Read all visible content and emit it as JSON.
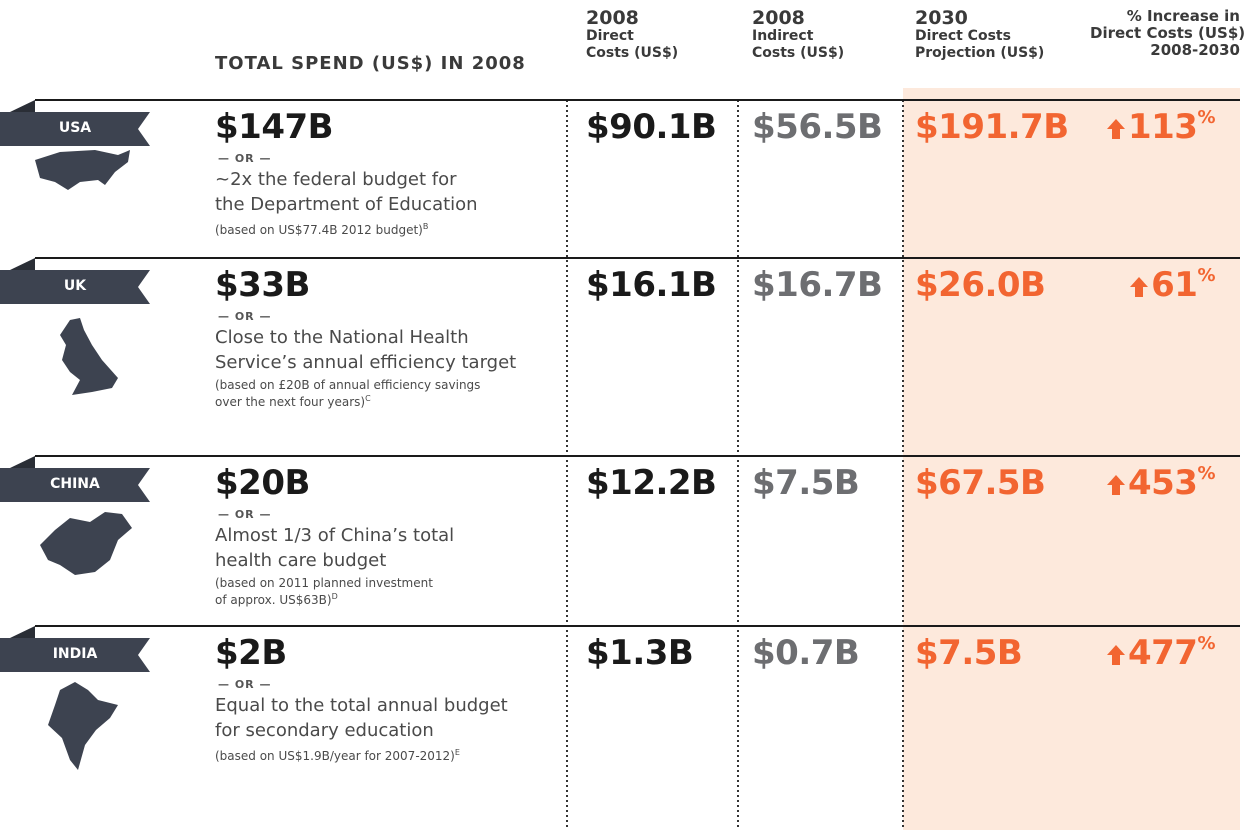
{
  "header": {
    "total_spend": "TOTAL SPEND (US$) IN 2008",
    "columns": [
      {
        "lines": [
          "2008",
          "Direct",
          "Costs (US$)"
        ]
      },
      {
        "lines": [
          "2008",
          "Indirect",
          "Costs (US$)"
        ]
      },
      {
        "lines": [
          "2030",
          "Direct Costs",
          "Projection (US$)"
        ]
      },
      {
        "lines": [
          "% Increase in",
          "Direct Costs (US$)",
          "2008-2030"
        ]
      }
    ]
  },
  "rows": [
    {
      "country": "USA",
      "total": "$147B",
      "or": "— OR —",
      "comparison": [
        "~2x the federal budget for",
        "the Department of Education"
      ],
      "note": [
        "(based on US$77.4B 2012 budget)"
      ],
      "note_ref": "B",
      "direct": "$90.1B",
      "indirect": "$56.5B",
      "projection": "$191.7B",
      "increase": "113",
      "increase_unit": "%"
    },
    {
      "country": "UK",
      "total": "$33B",
      "or": "— OR —",
      "comparison": [
        "Close to the National Health",
        "Service’s annual efficiency target"
      ],
      "note": [
        "(based on £20B of annual efficiency savings",
        "over the next four years)"
      ],
      "note_ref": "C",
      "direct": "$16.1B",
      "indirect": "$16.7B",
      "projection": "$26.0B",
      "increase": "61",
      "increase_unit": "%"
    },
    {
      "country": "CHINA",
      "total": "$20B",
      "or": "— OR —",
      "comparison": [
        "Almost 1/3 of China’s total",
        "health care budget"
      ],
      "note": [
        "(based on 2011 planned investment",
        "of approx. US$63B)"
      ],
      "note_ref": "D",
      "direct": "$12.2B",
      "indirect": "$7.5B",
      "projection": "$67.5B",
      "increase": "453",
      "increase_unit": "%"
    },
    {
      "country": "INDIA",
      "total": "$2B",
      "or": "— OR —",
      "comparison": [
        "Equal to the total annual budget",
        "for secondary education"
      ],
      "note": [
        "(based on US$1.9B/year for 2007-2012)"
      ],
      "note_ref": "E",
      "direct": "$1.3B",
      "indirect": "$0.7B",
      "projection": "$7.5B",
      "increase": "477",
      "increase_unit": "%"
    }
  ]
}
